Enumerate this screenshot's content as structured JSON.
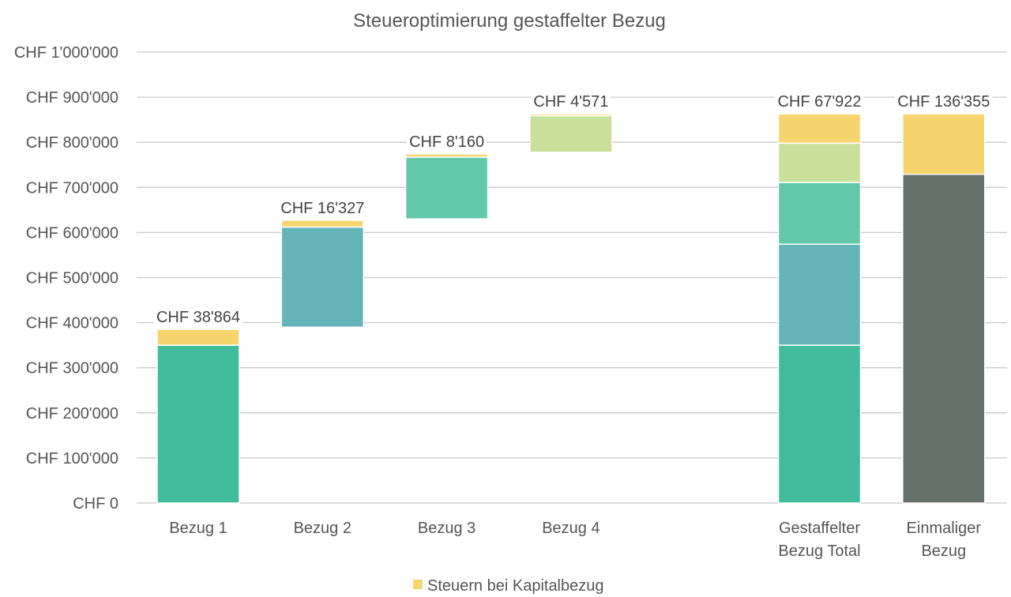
{
  "chart_data": {
    "type": "bar",
    "title": "Steueroptimierung gestaffelter Bezug",
    "ylim": [
      0,
      1000000
    ],
    "y_ticks": [
      {
        "value": 0,
        "label": "CHF 0"
      },
      {
        "value": 100000,
        "label": "CHF 100'000"
      },
      {
        "value": 200000,
        "label": "CHF 200'000"
      },
      {
        "value": 300000,
        "label": "CHF 300'000"
      },
      {
        "value": 400000,
        "label": "CHF 400'000"
      },
      {
        "value": 500000,
        "label": "CHF 500'000"
      },
      {
        "value": 600000,
        "label": "CHF 600'000"
      },
      {
        "value": 700000,
        "label": "CHF 700'000"
      },
      {
        "value": 800000,
        "label": "CHF 800'000"
      },
      {
        "value": 900000,
        "label": "CHF 900'000"
      },
      {
        "value": 1000000,
        "label": "CHF 1'000'000"
      }
    ],
    "grid": true,
    "legend_position": "bottom",
    "legend": [
      {
        "name": "Steuern bei Kapitalbezug",
        "color": "#F6D46E"
      }
    ],
    "categories": [
      {
        "label": [
          "Bezug 1"
        ],
        "slot": 0,
        "segments": [
          {
            "from": 0,
            "to": 350000,
            "color": "#40BC9A"
          },
          {
            "from": 350000,
            "to": 385000,
            "color": "#F6D46E"
          }
        ],
        "data_label": "CHF 38'864",
        "label_value": 385000
      },
      {
        "label": [
          "Bezug 2"
        ],
        "slot": 1,
        "segments": [
          {
            "from": 390000,
            "to": 612000,
            "color": "#63B5B8"
          },
          {
            "from": 612000,
            "to": 627000,
            "color": "#F6D46E"
          }
        ],
        "data_label": "CHF 16'327",
        "label_value": 627000
      },
      {
        "label": [
          "Bezug 3"
        ],
        "slot": 2,
        "segments": [
          {
            "from": 630000,
            "to": 767000,
            "color": "#63C8A9"
          },
          {
            "from": 767000,
            "to": 774000,
            "color": "#F6D46E"
          }
        ],
        "data_label": "CHF 8'160",
        "label_value": 774000
      },
      {
        "label": [
          "Bezug 4"
        ],
        "slot": 3,
        "segments": [
          {
            "from": 778000,
            "to": 859000,
            "color": "#C9E09A"
          },
          {
            "from": 859000,
            "to": 863000,
            "color": "#F6D46E"
          }
        ],
        "data_label": "CHF 4'571",
        "label_value": 863000
      },
      {
        "label": [
          "Gestaffelter",
          "Bezug Total"
        ],
        "slot": 5,
        "segments": [
          {
            "from": 0,
            "to": 350000,
            "color": "#40BC9A"
          },
          {
            "from": 350000,
            "to": 574000,
            "color": "#63B5B8"
          },
          {
            "from": 574000,
            "to": 711000,
            "color": "#63C8A9"
          },
          {
            "from": 711000,
            "to": 798000,
            "color": "#C9E09A"
          },
          {
            "from": 798000,
            "to": 863000,
            "color": "#F6D46E"
          }
        ],
        "data_label": "CHF 67'922",
        "label_value": 863000
      },
      {
        "label": [
          "Einmaliger",
          "Bezug"
        ],
        "slot": 6,
        "segments": [
          {
            "from": 0,
            "to": 729000,
            "color": "#65716B"
          },
          {
            "from": 729000,
            "to": 863000,
            "color": "#F6D46E"
          }
        ],
        "data_label": "CHF 136'355",
        "label_value": 863000
      }
    ]
  }
}
